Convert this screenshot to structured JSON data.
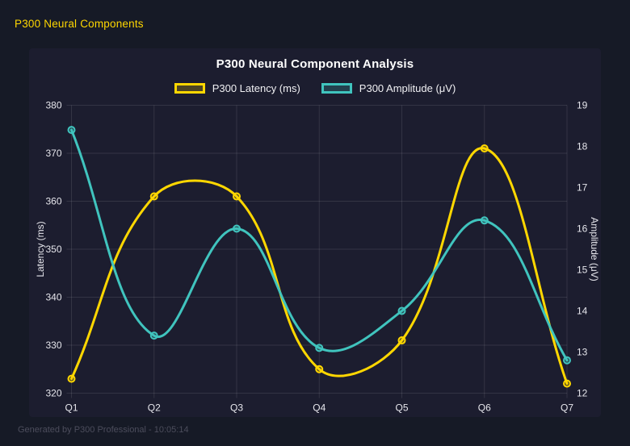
{
  "header": {
    "title": "P300 Neural Components"
  },
  "footer": {
    "text": "Generated by P300 Professional - 10:05:14"
  },
  "theme": {
    "page_bg": "#161A26",
    "panel_bg": "#1C1D2F",
    "header_color": "#FFD700",
    "title_color": "#FFFFFF",
    "tick_label_color": "#E6E6EC",
    "footer_color": "#4C4D5C",
    "latency_color": "#FFD700",
    "amplitude_color": "#40C4BE"
  },
  "chart_data": {
    "type": "line",
    "title": "P300 Neural Component Analysis",
    "categories": [
      "Q1",
      "Q2",
      "Q3",
      "Q4",
      "Q5",
      "Q6",
      "Q7"
    ],
    "series": [
      {
        "name": "P300 Latency (ms)",
        "color": "#FFD700",
        "axis": "left",
        "values": [
          323,
          361,
          361,
          325,
          331,
          371,
          322
        ]
      },
      {
        "name": "P300 Amplitude (μV)",
        "color": "#40C4BE",
        "axis": "right",
        "values": [
          18.4,
          13.4,
          16.0,
          13.1,
          14.0,
          16.2,
          12.8
        ]
      }
    ],
    "y_left": {
      "label": "Latency (ms)",
      "min": 320,
      "max": 380,
      "step": 10
    },
    "y_right": {
      "label": "Amplitude (μV)",
      "min": 12,
      "max": 19,
      "step": 1
    },
    "grid": true,
    "legend_position": "top",
    "curve": "smooth"
  }
}
